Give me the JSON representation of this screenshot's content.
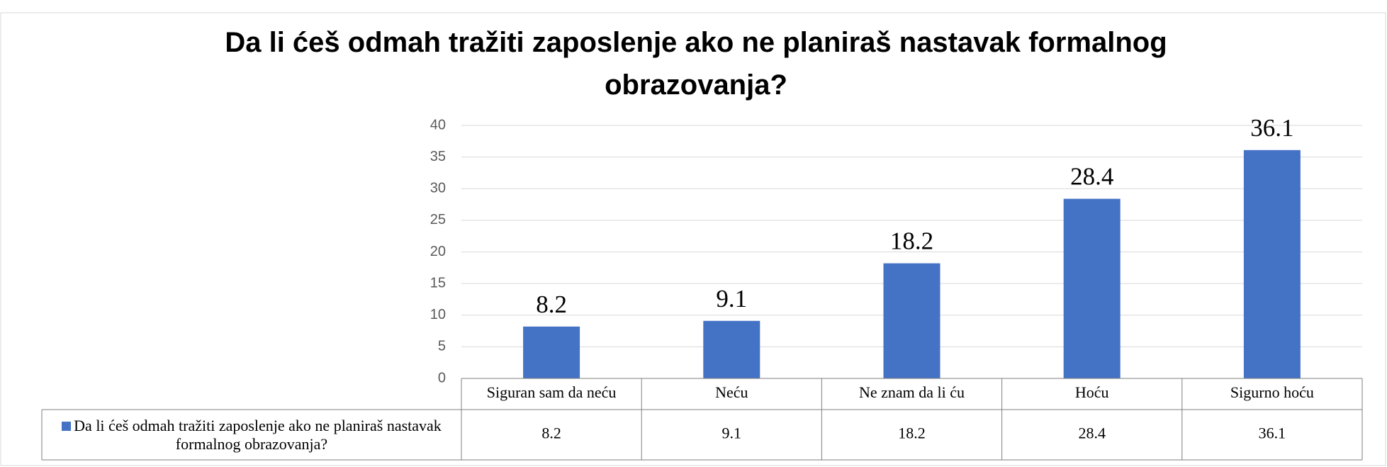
{
  "chart_data": {
    "type": "bar",
    "title": "Da li ćeš odmah tražiti zaposlenje ako ne planiraš nastavak formalnog obrazovanja?",
    "categories": [
      "Siguran sam da neću",
      "Neću",
      "Ne znam da li ću",
      "Hoću",
      "Sigurno hoću"
    ],
    "series": [
      {
        "name": "Da li ćeš odmah tražiti zaposlenje ako ne planiraš nastavak formalnog obrazovanja?",
        "color": "#4472c4",
        "values": [
          8.2,
          9.1,
          18.2,
          28.4,
          36.1
        ]
      }
    ],
    "ylim": [
      0,
      40
    ],
    "yticks": [
      0,
      5,
      10,
      15,
      20,
      25,
      30,
      35,
      40
    ],
    "grid": true,
    "data_table": true
  }
}
